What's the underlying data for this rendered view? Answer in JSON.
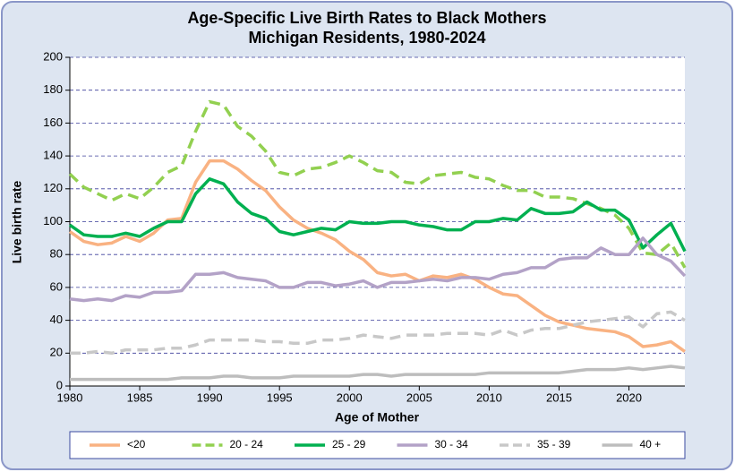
{
  "chart_data": {
    "type": "line",
    "title": "Age-Specific Live Birth Rates to Black Mothers",
    "subtitle": "Michigan Residents, 1980-2024",
    "x_label": "Age of Mother",
    "y_label": "Live birth rate",
    "x": [
      1980,
      1981,
      1982,
      1983,
      1984,
      1985,
      1986,
      1987,
      1988,
      1989,
      1990,
      1991,
      1992,
      1993,
      1994,
      1995,
      1996,
      1997,
      1998,
      1999,
      2000,
      2001,
      2002,
      2003,
      2004,
      2005,
      2006,
      2007,
      2008,
      2009,
      2010,
      2011,
      2012,
      2013,
      2014,
      2015,
      2016,
      2017,
      2018,
      2019,
      2020,
      2021,
      2022,
      2023,
      2024
    ],
    "xlim": [
      1980,
      2024
    ],
    "xticks": [
      1980,
      1985,
      1990,
      1995,
      2000,
      2005,
      2010,
      2015,
      2020
    ],
    "ylim": [
      0,
      200
    ],
    "yticks": [
      0,
      20,
      40,
      60,
      80,
      100,
      120,
      140,
      160,
      180,
      200
    ],
    "grid": true,
    "legend": "bottom",
    "series": [
      {
        "name": "<20",
        "color": "#f9b282",
        "dashed": false,
        "values": [
          94,
          88,
          86,
          87,
          91,
          88,
          93,
          101,
          102,
          124,
          137,
          137,
          132,
          125,
          119,
          109,
          101,
          96,
          93,
          89,
          82,
          77,
          69,
          67,
          68,
          64,
          67,
          66,
          68,
          65,
          60,
          56,
          55,
          49,
          43,
          39,
          37,
          35,
          34,
          33,
          30,
          24,
          25,
          27,
          21
        ]
      },
      {
        "name": "20 - 24",
        "color": "#92d050",
        "dashed": true,
        "values": [
          129,
          121,
          117,
          113,
          117,
          114,
          121,
          130,
          134,
          155,
          173,
          171,
          158,
          152,
          143,
          130,
          128,
          132,
          133,
          136,
          140,
          136,
          131,
          130,
          124,
          123,
          128,
          129,
          130,
          127,
          126,
          122,
          119,
          119,
          115,
          115,
          114,
          111,
          108,
          104,
          96,
          81,
          80,
          87,
          72
        ]
      },
      {
        "name": "25 - 29",
        "color": "#00b050",
        "dashed": false,
        "values": [
          98,
          92,
          91,
          91,
          93,
          91,
          96,
          100,
          100,
          117,
          126,
          123,
          112,
          105,
          102,
          94,
          92,
          94,
          96,
          95,
          100,
          99,
          99,
          100,
          100,
          98,
          97,
          95,
          95,
          100,
          100,
          102,
          101,
          108,
          105,
          105,
          106,
          112,
          107,
          107,
          101,
          84,
          92,
          99,
          82
        ]
      },
      {
        "name": "30 - 34",
        "color": "#b3a2c7",
        "dashed": false,
        "values": [
          53,
          52,
          53,
          52,
          55,
          54,
          57,
          57,
          58,
          68,
          68,
          69,
          66,
          65,
          64,
          60,
          60,
          63,
          63,
          61,
          62,
          64,
          60,
          63,
          63,
          64,
          65,
          64,
          66,
          66,
          65,
          68,
          69,
          72,
          72,
          77,
          78,
          78,
          84,
          80,
          80,
          90,
          80,
          76,
          67
        ]
      },
      {
        "name": "35 - 39",
        "color": "#c8c8c8",
        "dashed": true,
        "values": [
          20,
          20,
          21,
          20,
          22,
          22,
          22,
          23,
          23,
          25,
          28,
          28,
          28,
          28,
          27,
          27,
          26,
          26,
          28,
          28,
          29,
          31,
          30,
          29,
          31,
          31,
          31,
          32,
          32,
          32,
          31,
          34,
          31,
          34,
          35,
          35,
          37,
          39,
          40,
          41,
          42,
          36,
          44,
          45,
          40
        ]
      },
      {
        "name": "40 +",
        "color": "#bdbdbd",
        "dashed": false,
        "values": [
          4,
          4,
          4,
          4,
          4,
          4,
          4,
          4,
          5,
          5,
          5,
          6,
          6,
          5,
          5,
          5,
          6,
          6,
          6,
          6,
          6,
          7,
          7,
          6,
          7,
          7,
          7,
          7,
          7,
          7,
          8,
          8,
          8,
          8,
          8,
          8,
          9,
          10,
          10,
          10,
          11,
          10,
          11,
          12,
          11
        ]
      }
    ]
  }
}
